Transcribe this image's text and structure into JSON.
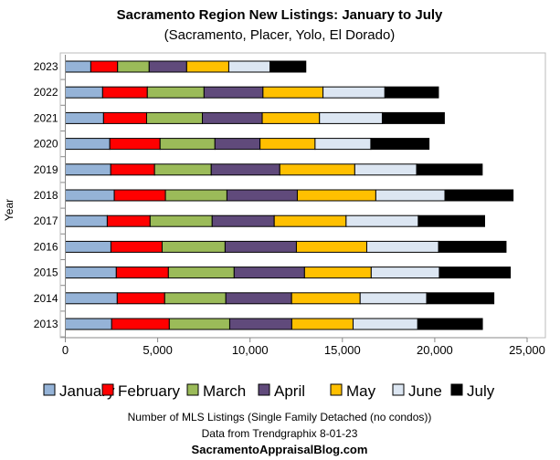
{
  "chart_data": {
    "type": "bar",
    "orientation": "horizontal",
    "stacked": true,
    "title": "Sacramento Region New Listings: January to July",
    "subtitle": "(Sacramento, Placer, Yolo, El Dorado)",
    "xlabel": "Number of MLS Listings (Single Family Detached (no condos))",
    "ylabel": "Year",
    "xlim": [
      0,
      25000
    ],
    "xticks": [
      "0",
      "5,000",
      "10,000",
      "15,000",
      "20,000",
      "25,000"
    ],
    "xtick_values": [
      0,
      5000,
      10000,
      15000,
      20000,
      25000
    ],
    "legend_position": "bottom",
    "categories": [
      "2023",
      "2022",
      "2021",
      "2020",
      "2019",
      "2018",
      "2017",
      "2016",
      "2015",
      "2014",
      "2013"
    ],
    "series": [
      {
        "name": "January",
        "color": "#95b3d7",
        "values": [
          1380,
          2020,
          2070,
          2410,
          2460,
          2650,
          2270,
          2470,
          2760,
          2810,
          2510
        ]
      },
      {
        "name": "February",
        "color": "#ff0000",
        "values": [
          1450,
          2420,
          2330,
          2720,
          2370,
          2770,
          2320,
          2770,
          2820,
          2570,
          3120
        ]
      },
      {
        "name": "March",
        "color": "#9bbb59",
        "values": [
          1710,
          3070,
          3020,
          2970,
          3070,
          3330,
          3360,
          3410,
          3560,
          3310,
          3270
        ]
      },
      {
        "name": "April",
        "color": "#604a7b",
        "values": [
          2030,
          3190,
          3240,
          2440,
          3710,
          3810,
          3360,
          3860,
          3810,
          3560,
          3360
        ]
      },
      {
        "name": "May",
        "color": "#ffc000",
        "values": [
          2280,
          3250,
          3100,
          2980,
          4060,
          4250,
          3890,
          3810,
          3610,
          3710,
          3320
        ]
      },
      {
        "name": "June",
        "color": "#dce6f2",
        "values": [
          2230,
          3350,
          3400,
          3020,
          3350,
          3740,
          3910,
          3890,
          3690,
          3600,
          3500
        ]
      },
      {
        "name": "July",
        "color": "#000000",
        "values": [
          1940,
          2900,
          3360,
          3150,
          3550,
          3690,
          3590,
          3650,
          3840,
          3640,
          3500
        ]
      }
    ]
  },
  "footer": {
    "source": "Data from Trendgraphix 8-01-23",
    "site": "SacramentoAppraisalBlog.com"
  }
}
